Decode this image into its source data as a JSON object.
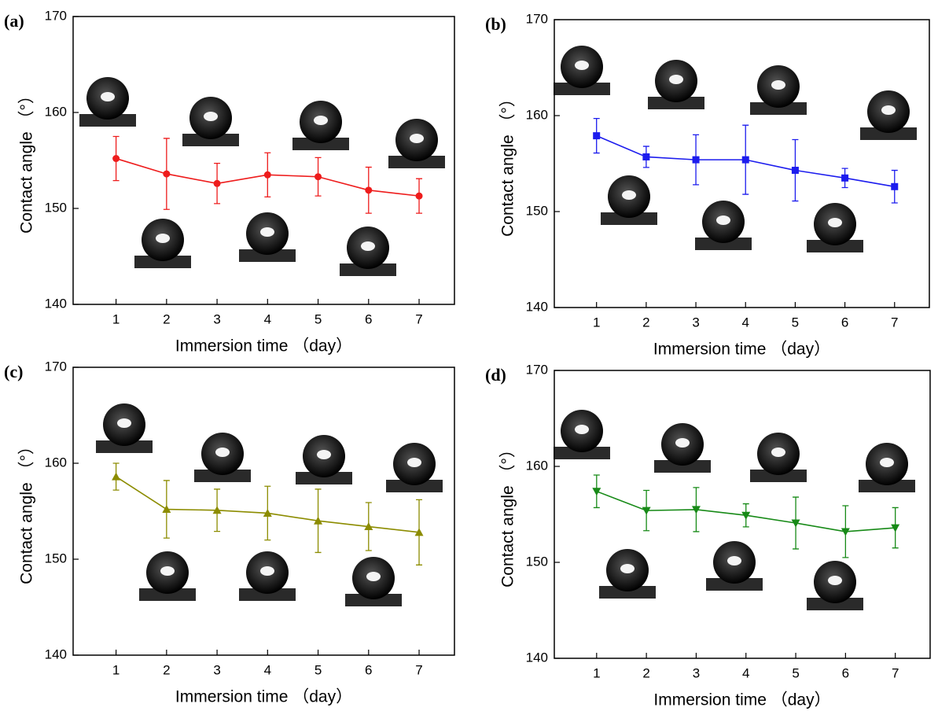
{
  "chart_data": [
    {
      "type": "line",
      "panel_label": "(a)",
      "xlabel": "Immersion time （day）",
      "ylabel": "Contact angle （°）",
      "xlim": [
        0.15,
        7.7
      ],
      "ylim": [
        140,
        170
      ],
      "xticks": [
        1,
        2,
        3,
        4,
        5,
        6,
        7
      ],
      "yticks": [
        140,
        150,
        160,
        170
      ],
      "series": [
        {
          "color": "#ee1c1c",
          "marker": "circle",
          "x": [
            1,
            2,
            3,
            4,
            5,
            6,
            7
          ],
          "values": [
            155.2,
            153.6,
            152.6,
            153.5,
            153.3,
            151.9,
            151.3
          ],
          "errors": [
            2.3,
            3.7,
            2.1,
            2.3,
            2.0,
            2.4,
            1.8
          ]
        }
      ]
    },
    {
      "type": "line",
      "panel_label": "(b)",
      "xlabel": "Immersion time （day）",
      "ylabel": "Contact angle （°）",
      "xlim": [
        0.15,
        7.7
      ],
      "ylim": [
        140,
        170
      ],
      "xticks": [
        1,
        2,
        3,
        4,
        5,
        6,
        7
      ],
      "yticks": [
        140,
        150,
        160,
        170
      ],
      "series": [
        {
          "color": "#1c1cee",
          "marker": "square",
          "x": [
            1,
            2,
            3,
            4,
            5,
            6,
            7
          ],
          "values": [
            157.9,
            155.7,
            155.4,
            155.4,
            154.3,
            153.5,
            152.6
          ],
          "errors": [
            1.8,
            1.1,
            2.6,
            3.6,
            3.2,
            1.0,
            1.7
          ]
        }
      ]
    },
    {
      "type": "line",
      "panel_label": "(c)",
      "xlabel": "Immersion time （day）",
      "ylabel": "Contact angle （°）",
      "xlim": [
        0.15,
        7.7
      ],
      "ylim": [
        140,
        170
      ],
      "xticks": [
        1,
        2,
        3,
        4,
        5,
        6,
        7
      ],
      "yticks": [
        140,
        150,
        160,
        170
      ],
      "series": [
        {
          "color": "#8c8c00",
          "marker": "triangle-up",
          "x": [
            1,
            2,
            3,
            4,
            5,
            6,
            7
          ],
          "values": [
            158.6,
            155.2,
            155.1,
            154.8,
            154.0,
            153.4,
            152.8
          ],
          "errors": [
            1.4,
            3.0,
            2.2,
            2.8,
            3.3,
            2.5,
            3.4
          ]
        }
      ]
    },
    {
      "type": "line",
      "panel_label": "(d)",
      "xlabel": "Immersion time （day）",
      "ylabel": "Contact angle （°）",
      "xlim": [
        0.15,
        7.7
      ],
      "ylim": [
        140,
        170
      ],
      "xticks": [
        1,
        2,
        3,
        4,
        5,
        6,
        7
      ],
      "yticks": [
        140,
        150,
        160,
        170
      ],
      "series": [
        {
          "color": "#178a17",
          "marker": "triangle-down",
          "x": [
            1,
            2,
            3,
            4,
            5,
            6,
            7
          ],
          "values": [
            157.4,
            155.4,
            155.5,
            154.9,
            154.1,
            153.2,
            153.6
          ],
          "errors": [
            1.7,
            2.1,
            2.3,
            1.2,
            2.7,
            2.7,
            2.1
          ]
        }
      ]
    }
  ]
}
